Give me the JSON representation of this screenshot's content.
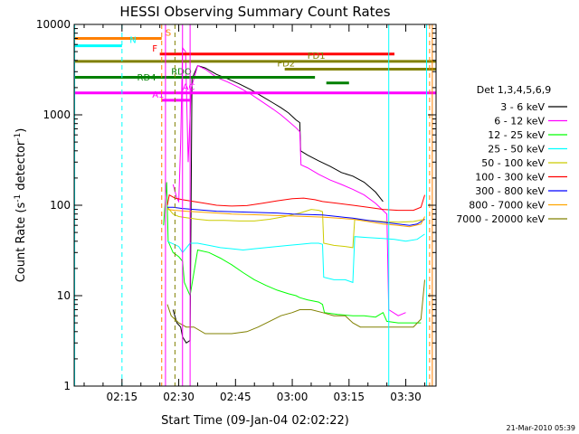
{
  "chart_data": {
    "type": "line",
    "title": "HESSI Observing Summary Count Rates",
    "xlabel": "Start Time (09-Jan-04 02:02:22)",
    "ylabel_main": "Count Rate (s",
    "ylabel_sup1": "-1",
    "ylabel_mid": " detector",
    "ylabel_sup2": "-1",
    "ylabel_end": ")",
    "footer": "21-Mar-2010 05:39",
    "x_unit": "minutes after 02:00 UT",
    "xlim": [
      2.37,
      98
    ],
    "y_scale": "log",
    "ylim": [
      1,
      10000
    ],
    "x_ticks": [
      {
        "value": 15,
        "label": "02:15"
      },
      {
        "value": 30,
        "label": "02:30"
      },
      {
        "value": 45,
        "label": "02:45"
      },
      {
        "value": 60,
        "label": "03:00"
      },
      {
        "value": 75,
        "label": "03:15"
      },
      {
        "value": 90,
        "label": "03:30"
      }
    ],
    "y_ticks": [
      {
        "value": 1,
        "label": "1"
      },
      {
        "value": 10,
        "label": "10"
      },
      {
        "value": 100,
        "label": "100"
      },
      {
        "value": 1000,
        "label": "1000"
      },
      {
        "value": 10000,
        "label": "10000"
      }
    ],
    "legend_title": "Det 1,3,4,5,6,9",
    "legend_position": "right",
    "series": [
      {
        "name": "3 - 6 keV",
        "color": "#000000",
        "points": [
          [
            28.5,
            7
          ],
          [
            29.5,
            5
          ],
          [
            30.5,
            4.5
          ],
          [
            31,
            3.5
          ],
          [
            32,
            3
          ],
          [
            33,
            3.2
          ],
          [
            33.5,
            2500
          ],
          [
            35,
            3500
          ],
          [
            37,
            3300
          ],
          [
            40,
            2800
          ],
          [
            43,
            2500
          ],
          [
            46,
            2200
          ],
          [
            49,
            1900
          ],
          [
            52,
            1600
          ],
          [
            55,
            1350
          ],
          [
            57,
            1200
          ],
          [
            59,
            1050
          ],
          [
            61,
            880
          ],
          [
            62,
            820
          ],
          [
            62.2,
            400
          ],
          [
            64,
            360
          ],
          [
            67,
            310
          ],
          [
            70,
            270
          ],
          [
            73,
            230
          ],
          [
            76,
            210
          ],
          [
            79,
            180
          ],
          [
            82,
            140
          ],
          [
            84,
            110
          ]
        ]
      },
      {
        "name": "6 - 12 keV",
        "color": "#ff00ff",
        "points": [
          [
            28.5,
            170
          ],
          [
            29.5,
            120
          ],
          [
            30,
            110
          ],
          [
            30.5,
            500
          ],
          [
            31,
            5500
          ],
          [
            31.8,
            5000
          ],
          [
            32.5,
            300
          ],
          [
            33.3,
            2000
          ],
          [
            35,
            3500
          ],
          [
            37,
            3200
          ],
          [
            40,
            2600
          ],
          [
            43,
            2300
          ],
          [
            46,
            2000
          ],
          [
            49,
            1700
          ],
          [
            52,
            1400
          ],
          [
            55,
            1150
          ],
          [
            57,
            1000
          ],
          [
            59,
            850
          ],
          [
            61,
            720
          ],
          [
            62,
            650
          ],
          [
            62.3,
            280
          ],
          [
            64,
            260
          ],
          [
            67,
            220
          ],
          [
            70,
            190
          ],
          [
            73,
            170
          ],
          [
            76,
            150
          ],
          [
            79,
            130
          ],
          [
            82,
            105
          ],
          [
            85,
            80
          ],
          [
            85.5,
            7
          ],
          [
            88,
            6
          ],
          [
            90,
            6.5
          ]
        ]
      },
      {
        "name": "12 - 25 keV",
        "color": "#00ff00",
        "points": [
          [
            26,
            60
          ],
          [
            26.8,
            180
          ],
          [
            27.2,
            40
          ],
          [
            28.5,
            30
          ],
          [
            30,
            27
          ],
          [
            31,
            24
          ],
          [
            31.5,
            14
          ],
          [
            33,
            10
          ],
          [
            35,
            32
          ],
          [
            38,
            30
          ],
          [
            41,
            26
          ],
          [
            44,
            22
          ],
          [
            47,
            18
          ],
          [
            50,
            15
          ],
          [
            53,
            13
          ],
          [
            56,
            11.5
          ],
          [
            59,
            10.5
          ],
          [
            61,
            10
          ],
          [
            62,
            9.5
          ],
          [
            64,
            9
          ],
          [
            67,
            8.5
          ],
          [
            68,
            8
          ],
          [
            68.5,
            6.5
          ],
          [
            72,
            6.2
          ],
          [
            76,
            6
          ],
          [
            79,
            6
          ],
          [
            82,
            5.8
          ],
          [
            84,
            6.5
          ],
          [
            85,
            5.2
          ],
          [
            88,
            5
          ],
          [
            92,
            5
          ],
          [
            94,
            5
          ]
        ]
      },
      {
        "name": "25 - 50 keV",
        "color": "#00ffff",
        "points": [
          [
            27,
            40
          ],
          [
            30,
            35
          ],
          [
            31,
            30
          ],
          [
            33,
            38
          ],
          [
            35,
            38
          ],
          [
            38,
            36
          ],
          [
            41,
            34
          ],
          [
            44,
            33
          ],
          [
            47,
            32
          ],
          [
            50,
            33
          ],
          [
            53,
            34
          ],
          [
            56,
            35
          ],
          [
            59,
            36
          ],
          [
            62,
            37
          ],
          [
            65,
            38
          ],
          [
            67,
            38
          ],
          [
            68,
            37
          ],
          [
            68.3,
            16
          ],
          [
            71,
            15
          ],
          [
            74,
            15
          ],
          [
            76,
            14
          ],
          [
            76.5,
            45
          ],
          [
            80,
            44
          ],
          [
            84,
            43
          ],
          [
            87,
            42
          ],
          [
            90,
            40
          ],
          [
            93,
            42
          ],
          [
            95,
            48
          ]
        ]
      },
      {
        "name": "50 - 100 keV",
        "color": "#cccc00",
        "points": [
          [
            27,
            95
          ],
          [
            28.5,
            80
          ],
          [
            30,
            75
          ],
          [
            32,
            73
          ],
          [
            35,
            70
          ],
          [
            38,
            68
          ],
          [
            42,
            68
          ],
          [
            46,
            67
          ],
          [
            50,
            67
          ],
          [
            54,
            70
          ],
          [
            58,
            75
          ],
          [
            62,
            82
          ],
          [
            65,
            90
          ],
          [
            67,
            88
          ],
          [
            68,
            85
          ],
          [
            68.3,
            38
          ],
          [
            71,
            36
          ],
          [
            74,
            35
          ],
          [
            76,
            34
          ],
          [
            76.5,
            70
          ],
          [
            80,
            68
          ],
          [
            84,
            66
          ],
          [
            88,
            65
          ],
          [
            92,
            66
          ],
          [
            95,
            70
          ]
        ]
      },
      {
        "name": "100 - 300 keV",
        "color": "#ff0000",
        "points": [
          [
            27,
            100
          ],
          [
            27.5,
            130
          ],
          [
            29,
            120
          ],
          [
            31,
            115
          ],
          [
            34,
            110
          ],
          [
            37,
            105
          ],
          [
            40,
            100
          ],
          [
            44,
            98
          ],
          [
            48,
            99
          ],
          [
            52,
            105
          ],
          [
            56,
            112
          ],
          [
            60,
            118
          ],
          [
            63,
            120
          ],
          [
            66,
            115
          ],
          [
            68,
            110
          ],
          [
            72,
            105
          ],
          [
            76,
            100
          ],
          [
            80,
            95
          ],
          [
            84,
            90
          ],
          [
            88,
            88
          ],
          [
            92,
            88
          ],
          [
            94,
            95
          ],
          [
            95,
            130
          ]
        ]
      },
      {
        "name": "300 - 800 keV",
        "color": "#0000ff",
        "points": [
          [
            27,
            95
          ],
          [
            28.5,
            95
          ],
          [
            31,
            92
          ],
          [
            34,
            90
          ],
          [
            37,
            88
          ],
          [
            40,
            86
          ],
          [
            44,
            85
          ],
          [
            48,
            84
          ],
          [
            52,
            83
          ],
          [
            56,
            82
          ],
          [
            60,
            80
          ],
          [
            64,
            79
          ],
          [
            68,
            78
          ],
          [
            72,
            75
          ],
          [
            76,
            72
          ],
          [
            80,
            68
          ],
          [
            84,
            65
          ],
          [
            88,
            62
          ],
          [
            91,
            60
          ],
          [
            93,
            62
          ],
          [
            95,
            70
          ]
        ]
      },
      {
        "name": "800 - 7000 keV",
        "color": "#ffa500",
        "points": [
          [
            27,
            90
          ],
          [
            29,
            88
          ],
          [
            32,
            86
          ],
          [
            36,
            84
          ],
          [
            40,
            82
          ],
          [
            44,
            80
          ],
          [
            48,
            79
          ],
          [
            52,
            78
          ],
          [
            56,
            77
          ],
          [
            60,
            76
          ],
          [
            64,
            75
          ],
          [
            68,
            74
          ],
          [
            72,
            72
          ],
          [
            76,
            70
          ],
          [
            80,
            66
          ],
          [
            84,
            62
          ],
          [
            88,
            60
          ],
          [
            91,
            58
          ],
          [
            94,
            62
          ],
          [
            95,
            75
          ]
        ]
      },
      {
        "name": "7000 - 20000 keV",
        "color": "#808000",
        "points": [
          [
            27,
            8
          ],
          [
            28,
            6
          ],
          [
            30,
            5
          ],
          [
            32,
            4.5
          ],
          [
            34,
            4.5
          ],
          [
            37,
            3.8
          ],
          [
            40,
            3.8
          ],
          [
            44,
            3.8
          ],
          [
            48,
            4
          ],
          [
            51,
            4.5
          ],
          [
            54,
            5.2
          ],
          [
            57,
            6
          ],
          [
            60,
            6.5
          ],
          [
            62,
            7
          ],
          [
            65,
            7
          ],
          [
            68,
            6.5
          ],
          [
            71,
            6
          ],
          [
            74,
            6
          ],
          [
            76,
            5
          ],
          [
            78,
            4.5
          ],
          [
            81,
            4.5
          ],
          [
            85,
            4.5
          ],
          [
            89,
            4.5
          ],
          [
            92,
            4.5
          ],
          [
            94,
            5.5
          ],
          [
            95,
            15
          ]
        ]
      }
    ],
    "flag_bars": [
      {
        "label": "S",
        "color": "#ff8000",
        "y": 7000,
        "x": [
          2.37,
          25.5
        ],
        "label_x": 26.5
      },
      {
        "label": "N",
        "color": "#00ffff",
        "y": 5800,
        "x": [
          2.37,
          15
        ],
        "label_x": 17
      },
      {
        "label": "F",
        "color": "#ff0000",
        "y": 4700,
        "x": [
          25,
          87
        ],
        "label_x": 23
      },
      {
        "label": "FD1",
        "color": "#808000",
        "y": 3900,
        "x": [
          2.37,
          98
        ],
        "label_x": 64
      },
      {
        "label": "FD2",
        "color": "#808000",
        "y": 3200,
        "x": [
          58,
          98
        ],
        "label_x": 56
      },
      {
        "label": "RDO",
        "color": "#008000",
        "y": 2600,
        "x": [
          2.37,
          66
        ],
        "label_x": 28
      },
      {
        "label": "RD4",
        "color": "#008000",
        "y": 2250,
        "x": [
          69,
          75
        ],
        "label_x": 19
      },
      {
        "label": "AC",
        "color": "#ff00ff",
        "y": 1750,
        "x": [
          2.37,
          98
        ],
        "label_x": 31
      },
      {
        "label": "A1",
        "color": "#ff00ff",
        "y": 1450,
        "x": [
          25.5,
          33
        ],
        "label_x": 23
      }
    ],
    "vertical_lines": [
      {
        "x": 2.5,
        "color": "#00ffff",
        "style": "solid"
      },
      {
        "x": 15,
        "color": "#00ffff",
        "style": "dashed"
      },
      {
        "x": 25.5,
        "color": "#ff8000",
        "style": "dashed"
      },
      {
        "x": 26.5,
        "color": "#ff00ff",
        "style": "solid"
      },
      {
        "x": 31,
        "color": "#ff00ff",
        "style": "solid"
      },
      {
        "x": 33,
        "color": "#ff00ff",
        "style": "solid"
      },
      {
        "x": 29,
        "color": "#808000",
        "style": "dashed"
      },
      {
        "x": 85.5,
        "color": "#00ffff",
        "style": "solid"
      },
      {
        "x": 95.5,
        "color": "#00ffff",
        "style": "solid"
      },
      {
        "x": 96.3,
        "color": "#ff8000",
        "style": "dashed"
      },
      {
        "x": 97,
        "color": "#ff8000",
        "style": "solid"
      }
    ]
  }
}
